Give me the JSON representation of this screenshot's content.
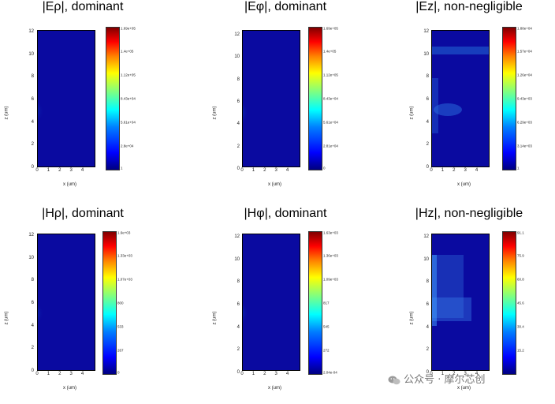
{
  "panels": [
    {
      "title": "|Eρ|, dominant",
      "x_axis_label": "x (um)",
      "y_axis_label": "z (um)",
      "y_ticks": [
        "12",
        "10",
        "8",
        "6",
        "4",
        "2",
        "0"
      ],
      "x_ticks": [
        "0",
        "1",
        "2",
        "3",
        "4"
      ],
      "colorbar_labels": [
        "1.69e+05",
        "1.4e+05",
        "1.12e+05",
        "8.43e+04",
        "5.61e+04",
        "2.8e+04",
        "1"
      ]
    },
    {
      "title": "|Eφ|, dominant",
      "x_axis_label": "x (um)",
      "y_axis_label": "z (um)",
      "y_ticks": [
        "12",
        "10",
        "8",
        "6",
        "4",
        "2",
        "0"
      ],
      "x_ticks": [
        "0",
        "1",
        "2",
        "3",
        "4"
      ],
      "colorbar_labels": [
        "1.69e+05",
        "1.4e+05",
        "1.12e+05",
        "8.43e+04",
        "5.61e+04",
        "2.81e+04",
        "0"
      ]
    },
    {
      "title": "|Ez|, non-negligible",
      "x_axis_label": "x (um)",
      "y_axis_label": "z (um)",
      "y_ticks": [
        "12",
        "10",
        "8",
        "6",
        "4",
        "2",
        "0"
      ],
      "x_ticks": [
        "0",
        "1",
        "2",
        "3",
        "4"
      ],
      "colorbar_labels": [
        "1.88e+04",
        "1.57e+04",
        "1.26e+04",
        "9.43e+03",
        "6.29e+03",
        "3.14e+03",
        "1"
      ]
    },
    {
      "title": "|Hρ|, dominant",
      "x_axis_label": "x (um)",
      "y_axis_label": "z (um)",
      "y_ticks": [
        "12",
        "10",
        "8",
        "6",
        "4",
        "2",
        "0"
      ],
      "x_ticks": [
        "0",
        "1",
        "2",
        "3",
        "4"
      ],
      "colorbar_labels": [
        "1.6e+03",
        "1.33e+03",
        "1.07e+03",
        "800",
        "533",
        "267",
        "0"
      ]
    },
    {
      "title": "|Hφ|, dominant",
      "x_axis_label": "x (um)",
      "y_axis_label": "z (um)",
      "y_ticks": [
        "12",
        "10",
        "8",
        "6",
        "4",
        "2",
        "0"
      ],
      "x_ticks": [
        "0",
        "1",
        "2",
        "3",
        "4"
      ],
      "colorbar_labels": [
        "1.63e+03",
        "1.36e+03",
        "1.09e+03",
        "817",
        "545",
        "272",
        "2.04e-04"
      ]
    },
    {
      "title": "|Hz|, non-negligible",
      "x_axis_label": "x (um)",
      "y_axis_label": "z (um)",
      "y_ticks": [
        "12",
        "10",
        "8",
        "6",
        "4",
        "2",
        "0"
      ],
      "x_ticks": [
        "0",
        "1",
        "2",
        "3",
        "4"
      ],
      "colorbar_labels": [
        "91.1",
        "75.9",
        "60.8",
        "45.6",
        "30.4",
        "15.2",
        ""
      ]
    }
  ],
  "watermark": "公众号 · 摩尔芯创",
  "colors": {
    "field_background": "#0a0aa0",
    "hotspot": "#cc0000"
  },
  "icons": {
    "watermark_icon": "wechat-icon"
  }
}
